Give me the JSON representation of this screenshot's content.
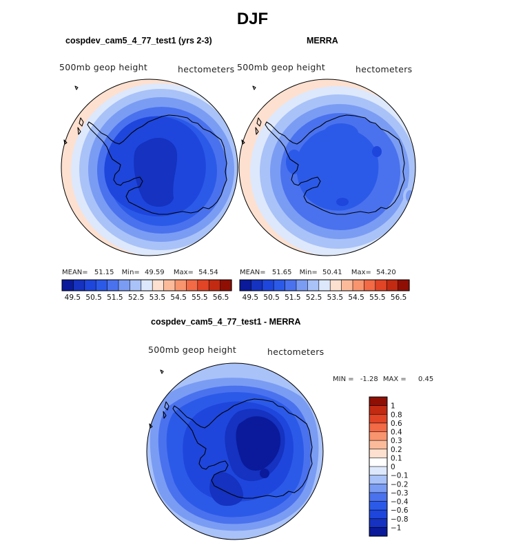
{
  "page": {
    "title": "DJF",
    "diff_title": "cospdev_cam5_4_77_test1 - MERRA"
  },
  "panels": [
    {
      "title": "cospdev_cam5_4_77_test1 (yrs 2-3)",
      "left_label": "500mb geop height",
      "right_label": "hectometers",
      "stats": {
        "mean_label": "MEAN=",
        "mean": "51.15",
        "min_label": "Min=",
        "min": "49.59",
        "max_label": "Max=",
        "max": "54.54"
      }
    },
    {
      "title": "MERRA",
      "left_label": "500mb geop height",
      "right_label": "hectometers",
      "stats": {
        "mean_label": "MEAN=",
        "mean": "51.65",
        "min_label": "Min=",
        "min": "50.41",
        "max_label": "Max=",
        "max": "54.20"
      }
    }
  ],
  "diff_panel": {
    "left_label": "500mb geop height",
    "right_label": "hectometers",
    "minmax": {
      "min_label": "MIN =",
      "min": "-1.28",
      "max_label": "MAX =",
      "max": "0.45"
    }
  },
  "chart_data": [
    {
      "type": "heatmap",
      "title": "cospdev_cam5_4_77_test1 (yrs 2-3)",
      "variable": "500mb geop height",
      "units": "hectometers",
      "projection": "south polar stereographic",
      "stats": {
        "mean": 51.15,
        "min": 49.59,
        "max": 54.54
      },
      "levels": [
        49.5,
        50.0,
        50.5,
        51.0,
        51.5,
        52.0,
        52.5,
        53.0,
        53.5,
        54.0,
        54.5,
        55.0,
        55.5,
        56.0,
        56.5
      ],
      "colorbar_tick_labels": [
        "49.5",
        "50.5",
        "51.5",
        "52.5",
        "53.5",
        "54.5",
        "55.5",
        "56.5"
      ],
      "colors": [
        "#0a1a9a",
        "#1532c0",
        "#1e46dc",
        "#2c5ae8",
        "#4a72ee",
        "#7a9cf3",
        "#a9c2f8",
        "#dde8fc",
        "#fde0cf",
        "#fbbb9b",
        "#f8946e",
        "#f26a46",
        "#e24426",
        "#c22a12",
        "#8f0f05"
      ],
      "colorbar_orientation": "horizontal"
    },
    {
      "type": "heatmap",
      "title": "MERRA",
      "variable": "500mb geop height",
      "units": "hectometers",
      "projection": "south polar stereographic",
      "stats": {
        "mean": 51.65,
        "min": 50.41,
        "max": 54.2
      },
      "levels": [
        49.5,
        50.0,
        50.5,
        51.0,
        51.5,
        52.0,
        52.5,
        53.0,
        53.5,
        54.0,
        54.5,
        55.0,
        55.5,
        56.0,
        56.5
      ],
      "colorbar_tick_labels": [
        "49.5",
        "50.5",
        "51.5",
        "52.5",
        "53.5",
        "54.5",
        "55.5",
        "56.5"
      ],
      "colors": [
        "#0a1a9a",
        "#1532c0",
        "#1e46dc",
        "#2c5ae8",
        "#4a72ee",
        "#7a9cf3",
        "#a9c2f8",
        "#dde8fc",
        "#fde0cf",
        "#fbbb9b",
        "#f8946e",
        "#f26a46",
        "#e24426",
        "#c22a12",
        "#8f0f05"
      ],
      "colorbar_orientation": "horizontal"
    },
    {
      "type": "heatmap",
      "title": "cospdev_cam5_4_77_test1 - MERRA",
      "variable": "500mb geop height",
      "units": "hectometers",
      "projection": "south polar stereographic",
      "stats": {
        "min": -1.28,
        "max": 0.45
      },
      "levels": [
        1,
        0.8,
        0.6,
        0.4,
        0.3,
        0.2,
        0.1,
        0,
        -0.1,
        -0.2,
        -0.3,
        -0.4,
        -0.6,
        -0.8,
        -1
      ],
      "colorbar_tick_labels": [
        "1",
        "0.8",
        "0.6",
        "0.4",
        "0.3",
        "0.2",
        "0.1",
        "0",
        "−0.1",
        "−0.2",
        "−0.3",
        "−0.4",
        "−0.6",
        "−0.8",
        "−1"
      ],
      "colors": [
        "#8f0f05",
        "#c22a12",
        "#e24426",
        "#f26a46",
        "#f8946e",
        "#fbbb9b",
        "#fde0cf",
        "#ffffff",
        "#dde8fc",
        "#a9c2f8",
        "#7a9cf3",
        "#4a72ee",
        "#2c5ae8",
        "#1e46dc",
        "#1532c0",
        "#0a1a9a"
      ],
      "colorbar_orientation": "vertical"
    }
  ]
}
